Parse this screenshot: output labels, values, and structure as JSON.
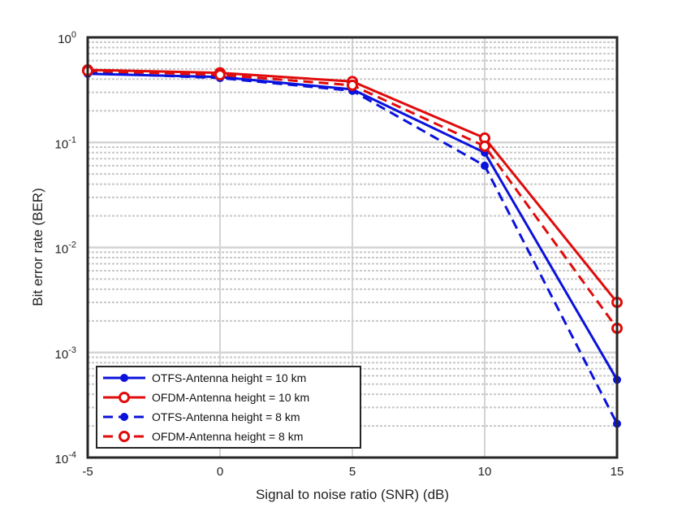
{
  "chart_data": {
    "type": "line",
    "title": "",
    "xlabel": "Signal to noise ratio (SNR) (dB)",
    "ylabel": "Bit error rate (BER)",
    "x": [
      -5,
      0,
      5,
      10,
      15
    ],
    "xticks": [
      "-5",
      "0",
      "5",
      "10",
      "15"
    ],
    "xlim": [
      -5,
      15
    ],
    "ylim": [
      0.0001,
      1
    ],
    "yscale": "log",
    "yticks": [
      {
        "base": "10",
        "exp": "0"
      },
      {
        "base": "10",
        "exp": "-1"
      },
      {
        "base": "10",
        "exp": "-2"
      },
      {
        "base": "10",
        "exp": "-3"
      },
      {
        "base": "10",
        "exp": "-4"
      }
    ],
    "grid": true,
    "legend_position": "bottom-left",
    "series": [
      {
        "name": "OTFS-Antenna height = 10 km",
        "values": [
          0.45,
          0.42,
          0.32,
          0.08,
          0.00055
        ],
        "color": "#0a12dc",
        "dash": "solid",
        "marker": "filled-circle"
      },
      {
        "name": "OFDM-Antenna height = 10 km",
        "values": [
          0.49,
          0.46,
          0.38,
          0.11,
          0.003
        ],
        "color": "#e00b0b",
        "dash": "solid",
        "marker": "open-circle"
      },
      {
        "name": "OTFS-Antenna height = 8 km",
        "values": [
          0.46,
          0.41,
          0.31,
          0.06,
          0.00021
        ],
        "color": "#0a12dc",
        "dash": "dashed",
        "marker": "filled-circle"
      },
      {
        "name": "OFDM-Antenna height = 8 km",
        "values": [
          0.48,
          0.44,
          0.35,
          0.092,
          0.0017
        ],
        "color": "#e00b0b",
        "dash": "dashed",
        "marker": "open-circle"
      }
    ]
  }
}
